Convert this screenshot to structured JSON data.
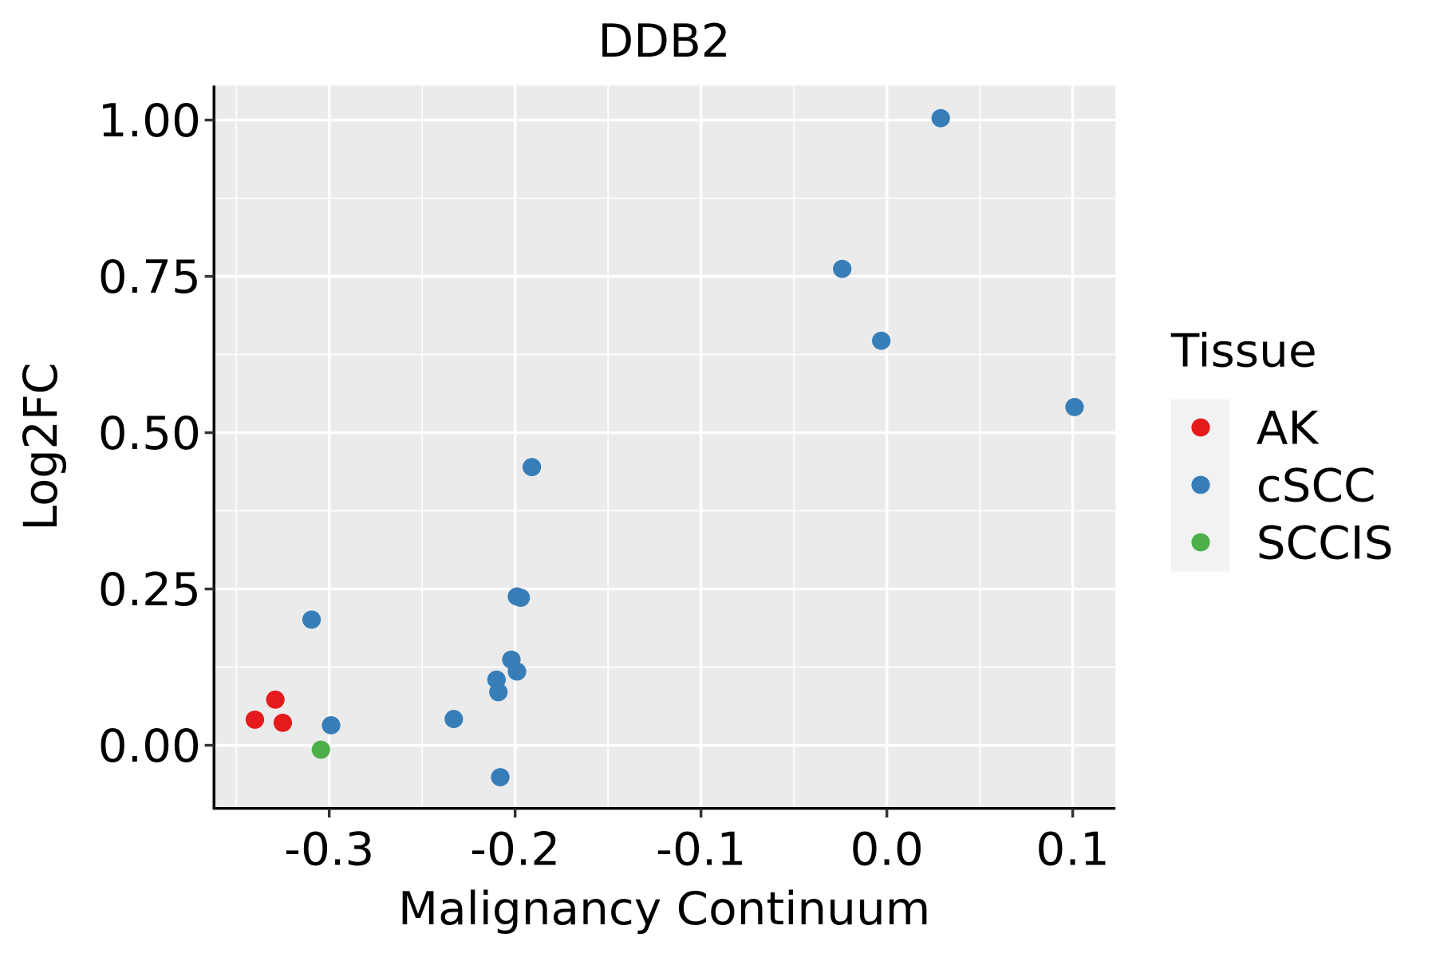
{
  "chart_data": {
    "type": "scatter",
    "title": "DDB2",
    "xlabel": "Malignancy Continuum",
    "ylabel": "Log2FC",
    "xlim": [
      -0.362,
      0.123
    ],
    "ylim": [
      -0.101,
      1.055
    ],
    "xticks": [
      -0.3,
      -0.2,
      -0.1,
      0.0,
      0.1
    ],
    "xtick_labels": [
      "-0.3",
      "-0.2",
      "-0.1",
      "0.0",
      "0.1"
    ],
    "yticks": [
      0,
      0.25,
      0.5,
      0.75,
      1.0
    ],
    "ytick_labels": [
      "0.00",
      "0.25",
      "0.50",
      "0.75",
      "1.00"
    ],
    "grid": true,
    "legend": {
      "title": "Tissue",
      "placement": "right",
      "entries": [
        "AK",
        "cSCC",
        "SCCIS"
      ]
    },
    "series": [
      {
        "name": "AK",
        "color": "#E41A1C",
        "points": [
          [
            -0.34,
            0.041
          ],
          [
            -0.329,
            0.073
          ],
          [
            -0.325,
            0.036
          ]
        ]
      },
      {
        "name": "cSCC",
        "color": "#377EB8",
        "points": [
          [
            -0.3095,
            0.201
          ],
          [
            -0.299,
            0.032
          ],
          [
            -0.233,
            0.042
          ],
          [
            -0.21,
            0.105
          ],
          [
            -0.209,
            0.085
          ],
          [
            -0.208,
            -0.051
          ],
          [
            -0.202,
            0.137
          ],
          [
            -0.199,
            0.118
          ],
          [
            -0.199,
            0.238
          ],
          [
            -0.197,
            0.236
          ],
          [
            -0.191,
            0.445
          ],
          [
            -0.024,
            0.762
          ],
          [
            -0.003,
            0.647
          ],
          [
            0.029,
            1.003
          ],
          [
            0.101,
            0.541
          ]
        ]
      },
      {
        "name": "SCCIS",
        "color": "#4DAF4A",
        "points": [
          [
            -0.3045,
            -0.007
          ]
        ]
      }
    ]
  }
}
